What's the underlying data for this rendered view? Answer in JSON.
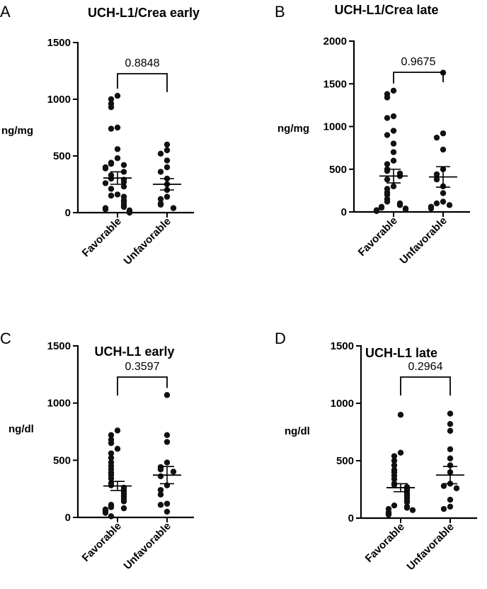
{
  "chart_data": [
    {
      "type": "scatter",
      "panel": "A",
      "title": "UCH-L1/Crea early",
      "ylabel": "ng/mg",
      "ylim": [
        0,
        1500
      ],
      "yticks": [
        0,
        500,
        1000,
        1500
      ],
      "categories": [
        "Favorable",
        "Unfavorable"
      ],
      "p_value": "0.8848",
      "series": [
        {
          "name": "Favorable",
          "values": [
            1030,
            1000,
            960,
            930,
            750,
            740,
            560,
            480,
            440,
            430,
            420,
            400,
            390,
            360,
            330,
            300,
            290,
            270,
            260,
            230,
            210,
            160,
            150,
            140,
            110,
            100,
            80,
            60,
            50,
            40,
            30,
            20,
            10,
            0
          ],
          "mean": 305,
          "sem": 55
        },
        {
          "name": "Unfavorable",
          "values": [
            600,
            550,
            520,
            460,
            400,
            360,
            300,
            250,
            200,
            140,
            120,
            80,
            70,
            40
          ],
          "mean": 250,
          "sem": 50
        }
      ]
    },
    {
      "type": "scatter",
      "panel": "B",
      "title": "UCH-L1/Crea late",
      "ylabel": "ng/mg",
      "ylim": [
        0,
        2000
      ],
      "yticks": [
        0,
        500,
        1000,
        1500,
        2000
      ],
      "categories": [
        "Favorable",
        "Unfavorable"
      ],
      "p_value": "0.9675",
      "series": [
        {
          "name": "Favorable",
          "values": [
            1420,
            1380,
            1340,
            1120,
            1100,
            950,
            900,
            800,
            700,
            600,
            560,
            500,
            480,
            450,
            420,
            380,
            300,
            270,
            230,
            200,
            150,
            120,
            100,
            80,
            60,
            50,
            40,
            30,
            20,
            10
          ],
          "mean": 420,
          "sem": 80
        },
        {
          "name": "Unfavorable",
          "values": [
            1630,
            920,
            870,
            730,
            500,
            440,
            380,
            300,
            220,
            120,
            100,
            80,
            60,
            40
          ],
          "mean": 410,
          "sem": 120
        }
      ]
    },
    {
      "type": "scatter",
      "panel": "C",
      "title": "UCH-L1 early",
      "ylabel": "ng/dl",
      "ylim": [
        0,
        1500
      ],
      "yticks": [
        0,
        500,
        1000,
        1500
      ],
      "categories": [
        "Favorable",
        "Unfavorable"
      ],
      "p_value": "0.3597",
      "series": [
        {
          "name": "Favorable",
          "values": [
            760,
            720,
            680,
            650,
            600,
            560,
            520,
            480,
            450,
            420,
            390,
            370,
            340,
            300,
            280,
            260,
            240,
            220,
            200,
            180,
            160,
            140,
            110,
            90,
            80,
            70,
            60,
            40,
            10
          ],
          "mean": 275,
          "sem": 40
        },
        {
          "name": "Unfavorable",
          "values": [
            1070,
            720,
            660,
            480,
            440,
            420,
            400,
            360,
            280,
            240,
            200,
            120,
            110,
            50
          ],
          "mean": 370,
          "sem": 75
        }
      ]
    },
    {
      "type": "scatter",
      "panel": "D",
      "title": "UCH-L1 late",
      "ylabel": "ng/dl",
      "ylim": [
        0,
        1500
      ],
      "yticks": [
        0,
        500,
        1000,
        1500
      ],
      "categories": [
        "Favorable",
        "Unfavorable"
      ],
      "p_value": "0.2964",
      "series": [
        {
          "name": "Favorable",
          "values": [
            900,
            570,
            540,
            500,
            460,
            420,
            400,
            370,
            340,
            300,
            290,
            270,
            250,
            240,
            220,
            200,
            180,
            160,
            140,
            110,
            100,
            90,
            80,
            70,
            50,
            40,
            30
          ],
          "mean": 265,
          "sem": 35
        },
        {
          "name": "Unfavorable",
          "values": [
            910,
            820,
            760,
            600,
            520,
            460,
            400,
            300,
            280,
            260,
            160,
            100,
            80
          ],
          "mean": 375,
          "sem": 75
        }
      ]
    }
  ]
}
